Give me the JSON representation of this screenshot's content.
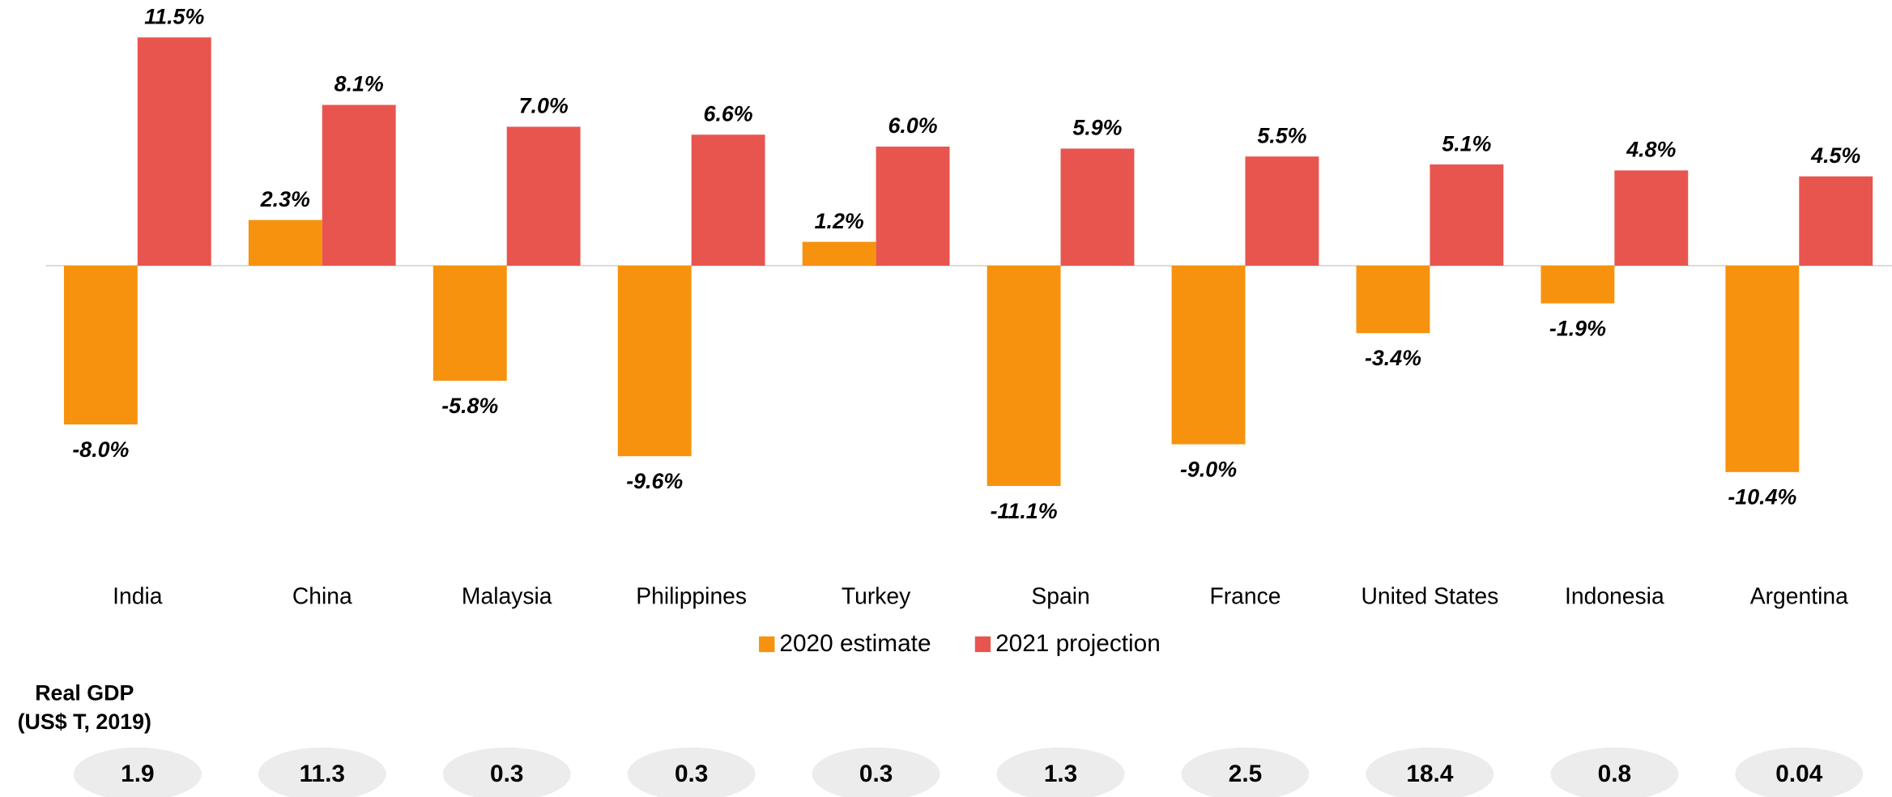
{
  "chart_data": {
    "type": "bar",
    "categories": [
      "India",
      "China",
      "Malaysia",
      "Philippines",
      "Turkey",
      "Spain",
      "France",
      "United States",
      "Indonesia",
      "Argentina"
    ],
    "series": [
      {
        "name": "2020 estimate",
        "color": "#f7920f",
        "values": [
          -8.0,
          2.3,
          -5.8,
          -9.6,
          1.2,
          -11.1,
          -9.0,
          -3.4,
          -1.9,
          -10.4
        ],
        "value_labels": [
          "-8.0%",
          "2.3%",
          "-5.8%",
          "-9.6%",
          "1.2%",
          "-11.1%",
          "-9.0%",
          "-3.4%",
          "-1.9%",
          "-10.4%"
        ]
      },
      {
        "name": "2021 projection",
        "color": "#e8554e",
        "values": [
          11.5,
          8.1,
          7.0,
          6.6,
          6.0,
          5.9,
          5.5,
          5.1,
          4.8,
          4.5
        ],
        "value_labels": [
          "11.5%",
          "8.1%",
          "7.0%",
          "6.6%",
          "6.0%",
          "5.9%",
          "5.5%",
          "5.1%",
          "4.8%",
          "4.5%"
        ]
      }
    ],
    "legend": "bottom",
    "gdp": {
      "label": [
        "Real GDP",
        "(US$ T, 2019)"
      ],
      "values": [
        1.9,
        11.3,
        0.3,
        0.3,
        0.3,
        1.3,
        2.5,
        18.4,
        0.8,
        0.04
      ]
    }
  }
}
